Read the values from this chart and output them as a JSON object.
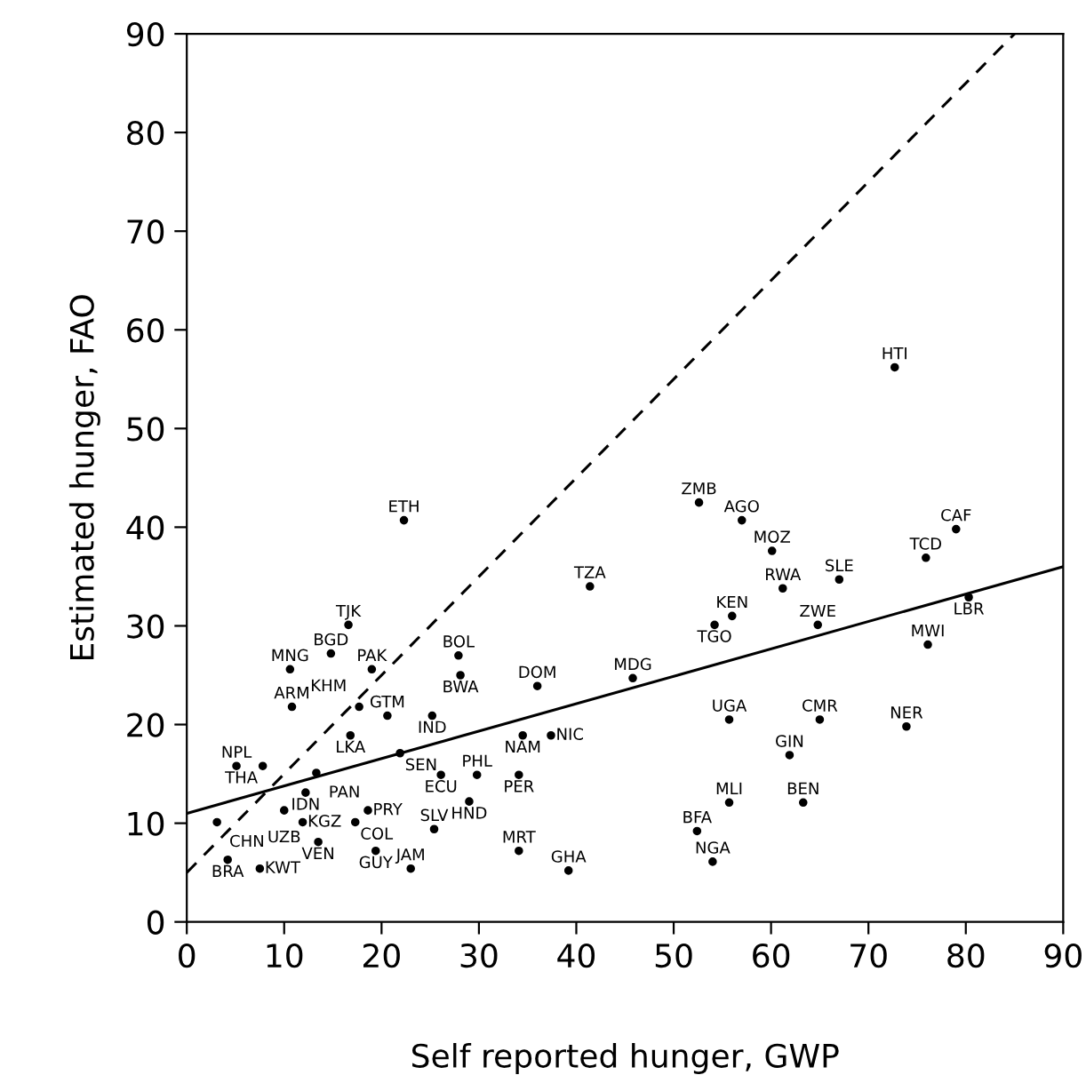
{
  "chart_data": {
    "type": "scatter",
    "xlabel": "Self reported hunger, GWP",
    "ylabel": "Estimated hunger, FAO",
    "xlim": [
      0,
      90
    ],
    "ylim": [
      0,
      90
    ],
    "xticks": [
      0,
      10,
      20,
      30,
      40,
      50,
      60,
      70,
      80,
      90
    ],
    "yticks": [
      0,
      10,
      20,
      30,
      40,
      50,
      60,
      70,
      80,
      90
    ],
    "grid": false,
    "legend": false,
    "series": [
      {
        "marker": "circle",
        "color": "#000000",
        "x": [
          72.7,
          22.3,
          52.6,
          57.0,
          60.1,
          79.0,
          75.9,
          67.0,
          61.2,
          80.3,
          41.4,
          56.0,
          54.2,
          64.8,
          76.1,
          16.6,
          14.8,
          10.6,
          19.0,
          27.9,
          28.1,
          36.0,
          45.8,
          10.8,
          17.7,
          20.6,
          25.2,
          55.7,
          65.0,
          73.9,
          16.8,
          34.5,
          37.4,
          61.9,
          21.9,
          5.1,
          7.8,
          13.3,
          26.1,
          29.8,
          34.1,
          12.2,
          29.0,
          55.7,
          63.3,
          10.0,
          18.6,
          3.1,
          11.9,
          17.3,
          25.4,
          52.4,
          13.5,
          19.4,
          34.1,
          4.2,
          54.0,
          7.5,
          23.0,
          39.2
        ],
        "values": [
          56.2,
          40.7,
          42.5,
          40.7,
          37.6,
          39.8,
          36.9,
          34.7,
          33.8,
          32.9,
          34.0,
          31.0,
          30.1,
          30.1,
          28.1,
          30.1,
          27.2,
          25.6,
          25.6,
          27.0,
          25.0,
          23.9,
          24.7,
          21.8,
          21.8,
          20.9,
          20.9,
          20.5,
          20.5,
          19.8,
          18.9,
          18.9,
          18.9,
          16.9,
          17.1,
          15.8,
          15.8,
          15.1,
          14.9,
          14.9,
          14.9,
          13.1,
          12.2,
          12.1,
          12.1,
          11.3,
          11.3,
          10.1,
          10.1,
          10.1,
          9.4,
          9.2,
          8.1,
          7.2,
          7.2,
          6.3,
          6.1,
          5.4,
          5.4,
          5.2
        ],
        "value_labels": [
          "HTI",
          "ETH",
          "ZMB",
          "AGO",
          "MOZ",
          "CAF",
          "TCD",
          "SLE",
          "RWA",
          "LBR",
          "TZA",
          "KEN",
          "TGO",
          "ZWE",
          "MWI",
          "TJK",
          "BGD",
          "MNG",
          "PAK",
          "BOL",
          "BWA",
          "DOM",
          "MDG",
          "ARM",
          "KHM",
          "GTM",
          "IND",
          "UGA",
          "CMR",
          "NER",
          "LKA",
          "NAM",
          "NIC",
          "GIN",
          "SEN",
          "NPL",
          "THA",
          "PAN",
          "ECU",
          "PHL",
          "PER",
          "IDN",
          "HND",
          "MLI",
          "BEN",
          "UZB",
          "PRY",
          "CHN",
          "KGZ",
          "COL",
          "SLV",
          "BFA",
          "VEN",
          "GUY",
          "MRT",
          "BRA",
          "NGA",
          "KWT",
          "JAM",
          "GHA"
        ]
      },
      {
        "type": "line",
        "line_style": "dashed",
        "color": "#000000",
        "x": [
          0,
          85
        ],
        "values": [
          5,
          90
        ]
      },
      {
        "type": "line",
        "line_style": "solid",
        "color": "#000000",
        "x": [
          0,
          90
        ],
        "values": [
          11,
          36
        ]
      }
    ]
  }
}
